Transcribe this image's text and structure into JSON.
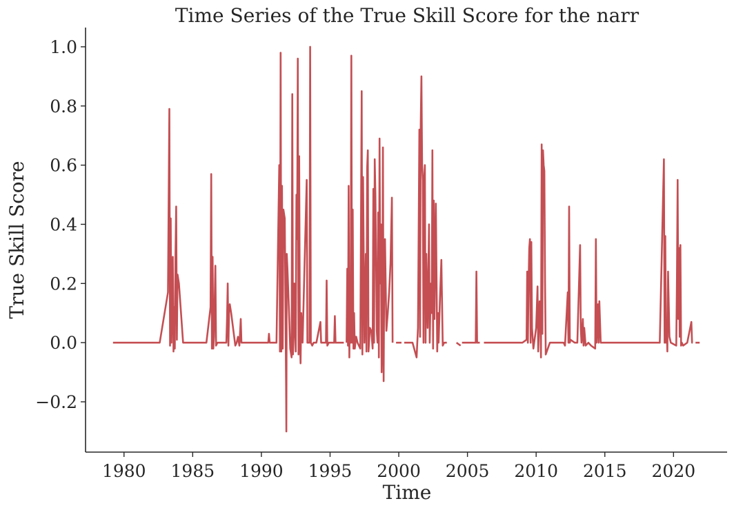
{
  "chart_data": {
    "type": "line",
    "title": "Time Series of the True Skill Score for the narr",
    "xlabel": "Time",
    "ylabel": "True Skill Score",
    "xlim": [
      1977.2,
      2023.9
    ],
    "ylim": [
      -0.37,
      1.065
    ],
    "x_ticks": [
      1980,
      1985,
      1990,
      1995,
      2000,
      2005,
      2010,
      2015,
      2020
    ],
    "x_tick_labels": [
      "1980",
      "1985",
      "1990",
      "1995",
      "2000",
      "2005",
      "2010",
      "2015",
      "2020"
    ],
    "y_ticks": [
      -0.2,
      0.0,
      0.2,
      0.4,
      0.6,
      0.8,
      1.0
    ],
    "y_tick_labels": [
      "−0.2",
      "0.0",
      "0.2",
      "0.4",
      "0.6",
      "0.8",
      "1.0"
    ],
    "grid": false,
    "line_color": "#c44e52",
    "series": [
      {
        "segments": [
          [
            [
              1979.2,
              0
            ],
            [
              1982.6,
              0
            ],
            [
              1983.2,
              0.17
            ],
            [
              1983.3,
              0.79
            ],
            [
              1983.35,
              -0.01
            ],
            [
              1983.4,
              0.42
            ],
            [
              1983.45,
              0
            ],
            [
              1983.55,
              0.29
            ],
            [
              1983.6,
              -0.03
            ],
            [
              1983.65,
              0.12
            ],
            [
              1983.7,
              -0.02
            ],
            [
              1983.75,
              0.3
            ],
            [
              1983.8,
              0.46
            ],
            [
              1983.85,
              0.01
            ],
            [
              1983.9,
              0.23
            ],
            [
              1984.0,
              0.2
            ],
            [
              1984.3,
              0
            ],
            [
              1986.0,
              0
            ],
            [
              1986.3,
              0.12
            ],
            [
              1986.35,
              0.57
            ],
            [
              1986.4,
              -0.02
            ],
            [
              1986.45,
              0.29
            ],
            [
              1986.5,
              -0.02
            ],
            [
              1986.55,
              0.02
            ],
            [
              1986.65,
              0.26
            ],
            [
              1986.7,
              -0.01
            ],
            [
              1986.8,
              0
            ],
            [
              1987.2,
              0
            ],
            [
              1987.3,
              0
            ],
            [
              1987.45,
              0
            ],
            [
              1987.5,
              0.08
            ],
            [
              1987.55,
              0.2
            ],
            [
              1987.6,
              -0.01
            ],
            [
              1987.65,
              0.11
            ],
            [
              1987.7,
              0.13
            ],
            [
              1987.8,
              0.1
            ],
            [
              1988.1,
              -0.01
            ],
            [
              1988.2,
              0
            ],
            [
              1988.3,
              0.02
            ],
            [
              1988.4,
              -0.01
            ],
            [
              1988.5,
              0.08
            ],
            [
              1988.55,
              0
            ],
            [
              1990.5,
              0
            ],
            [
              1990.55,
              0.03
            ],
            [
              1990.6,
              0
            ],
            [
              1991.1,
              0
            ],
            [
              1991.3,
              0.6
            ],
            [
              1991.35,
              -0.03
            ],
            [
              1991.4,
              0.98
            ],
            [
              1991.45,
              -0.03
            ],
            [
              1991.5,
              0.53
            ],
            [
              1991.55,
              -0.02
            ],
            [
              1991.6,
              0.45
            ],
            [
              1991.7,
              0.42
            ],
            [
              1991.8,
              -0.14
            ],
            [
              1991.82,
              -0.3
            ],
            [
              1991.85,
              0.3
            ],
            [
              1991.9,
              0.25
            ],
            [
              1992.0,
              0.12
            ],
            [
              1992.1,
              -0.02
            ],
            [
              1992.2,
              -0.05
            ],
            [
              1992.25,
              0.84
            ],
            [
              1992.3,
              -0.04
            ],
            [
              1992.35,
              0.02
            ],
            [
              1992.4,
              0.2
            ],
            [
              1992.5,
              -0.03
            ],
            [
              1992.55,
              0.5
            ],
            [
              1992.6,
              0.35
            ],
            [
              1992.65,
              0.96
            ],
            [
              1992.7,
              -0.04
            ],
            [
              1992.75,
              0.63
            ],
            [
              1992.8,
              0.03
            ],
            [
              1992.85,
              -0.07
            ],
            [
              1992.9,
              0.1
            ],
            [
              1993.0,
              0
            ],
            [
              1993.3,
              0.55
            ],
            [
              1993.35,
              0
            ],
            [
              1993.5,
              0
            ],
            [
              1993.55,
              1.0
            ],
            [
              1993.6,
              0
            ],
            [
              1993.7,
              -0.01
            ],
            [
              1993.8,
              0
            ],
            [
              1994.0,
              0
            ],
            [
              1994.3,
              0.07
            ],
            [
              1994.35,
              0
            ],
            [
              1994.7,
              0
            ],
            [
              1994.75,
              0.21
            ],
            [
              1994.8,
              -0.01
            ],
            [
              1994.9,
              0
            ],
            [
              1995.3,
              0
            ],
            [
              1995.35,
              0.09
            ],
            [
              1995.4,
              0
            ],
            [
              1996.0,
              0
            ]
          ],
          [
            [
              1996.2,
              0
            ],
            [
              1996.25,
              0.25
            ],
            [
              1996.3,
              -0.01
            ],
            [
              1996.35,
              0.53
            ],
            [
              1996.4,
              -0.05
            ],
            [
              1996.45,
              0.17
            ],
            [
              1996.5,
              0
            ],
            [
              1996.55,
              0.97
            ],
            [
              1996.6,
              0
            ],
            [
              1996.65,
              0.45
            ],
            [
              1996.7,
              -0.02
            ],
            [
              1996.75,
              0.1
            ],
            [
              1996.8,
              -0.02
            ],
            [
              1996.9,
              0.02
            ],
            [
              1997.0,
              0
            ],
            [
              1997.2,
              -0.02
            ],
            [
              1997.3,
              0.85
            ],
            [
              1997.35,
              -0.04
            ],
            [
              1997.4,
              0.56
            ],
            [
              1997.5,
              0
            ],
            [
              1997.6,
              0.3
            ],
            [
              1997.65,
              -0.03
            ],
            [
              1997.7,
              0.59
            ],
            [
              1997.75,
              0.65
            ],
            [
              1997.8,
              -0.03
            ],
            [
              1997.9,
              0.05
            ],
            [
              1998.0,
              0.04
            ],
            [
              1998.1,
              -0.02
            ],
            [
              1998.15,
              0.52
            ],
            [
              1998.2,
              0
            ],
            [
              1998.25,
              0.62
            ],
            [
              1998.3,
              0.5
            ],
            [
              1998.4,
              0.04
            ],
            [
              1998.45,
              0
            ],
            [
              1998.5,
              0.44
            ],
            [
              1998.55,
              -0.05
            ],
            [
              1998.6,
              0.69
            ],
            [
              1998.65,
              0.2
            ],
            [
              1998.7,
              0.4
            ],
            [
              1998.75,
              -0.1
            ],
            [
              1998.8,
              0
            ],
            [
              1998.85,
              0.66
            ],
            [
              1998.9,
              -0.13
            ],
            [
              1998.95,
              0.25
            ],
            [
              1999.0,
              0.35
            ],
            [
              1999.1,
              0.04
            ],
            [
              1999.2,
              0.1
            ],
            [
              1999.3,
              0.17
            ],
            [
              1999.4,
              0.27
            ],
            [
              1999.5,
              0.49
            ],
            [
              1999.55,
              0
            ]
          ],
          [
            [
              1999.8,
              0
            ],
            [
              2000.2,
              0
            ]
          ],
          [
            [
              2000.4,
              0
            ],
            [
              2001.0,
              0
            ],
            [
              2001.3,
              -0.05
            ],
            [
              2001.4,
              0.05
            ],
            [
              2001.45,
              0.38
            ],
            [
              2001.5,
              0.72
            ],
            [
              2001.55,
              0.02
            ],
            [
              2001.6,
              0.74
            ],
            [
              2001.65,
              0.9
            ],
            [
              2001.7,
              0.6
            ],
            [
              2001.75,
              0.55
            ],
            [
              2001.8,
              0
            ],
            [
              2001.85,
              0.55
            ],
            [
              2001.9,
              0.6
            ],
            [
              2001.95,
              0
            ],
            [
              2002.0,
              0.3
            ],
            [
              2002.1,
              0.05
            ],
            [
              2002.2,
              0.4
            ],
            [
              2002.25,
              0
            ],
            [
              2002.3,
              0.12
            ],
            [
              2002.35,
              0.2
            ],
            [
              2002.4,
              0.1
            ],
            [
              2002.45,
              0.65
            ],
            [
              2002.5,
              -0.02
            ],
            [
              2002.55,
              0.48
            ],
            [
              2002.6,
              0.08
            ],
            [
              2002.7,
              0.47
            ],
            [
              2002.8,
              -0.03
            ],
            [
              2002.85,
              0.1
            ],
            [
              2002.9,
              0
            ],
            [
              2003.0,
              0.15
            ],
            [
              2003.1,
              0.28
            ],
            [
              2003.2,
              -0.01
            ],
            [
              2003.3,
              0
            ],
            [
              2003.5,
              0
            ]
          ],
          [
            [
              2004.2,
              0
            ],
            [
              2004.5,
              -0.01
            ]
          ],
          [
            [
              2004.6,
              0
            ],
            [
              2005.3,
              0
            ],
            [
              2005.6,
              0
            ],
            [
              2005.65,
              0.24
            ],
            [
              2005.7,
              0
            ],
            [
              2005.9,
              0
            ]
          ],
          [
            [
              2006.2,
              0
            ],
            [
              2009.0,
              0
            ],
            [
              2009.3,
              0.01
            ],
            [
              2009.35,
              0.24
            ],
            [
              2009.4,
              0
            ],
            [
              2009.45,
              0.2
            ],
            [
              2009.5,
              0.32
            ],
            [
              2009.55,
              0.35
            ],
            [
              2009.6,
              0
            ],
            [
              2009.65,
              0.34
            ],
            [
              2009.7,
              0.05
            ],
            [
              2009.8,
              -0.02
            ],
            [
              2010.0,
              0.05
            ],
            [
              2010.1,
              0.19
            ],
            [
              2010.15,
              -0.03
            ],
            [
              2010.2,
              0.05
            ],
            [
              2010.25,
              0.14
            ],
            [
              2010.3,
              0.1
            ],
            [
              2010.35,
              -0.05
            ],
            [
              2010.4,
              0.67
            ],
            [
              2010.45,
              0.03
            ],
            [
              2010.5,
              0.65
            ],
            [
              2010.55,
              0.6
            ],
            [
              2010.6,
              0.58
            ],
            [
              2010.65,
              0.2
            ],
            [
              2010.7,
              -0.04
            ],
            [
              2011.0,
              0
            ],
            [
              2012.0,
              0
            ],
            [
              2012.1,
              -0.01
            ],
            [
              2012.3,
              0.17
            ],
            [
              2012.35,
              0
            ],
            [
              2012.4,
              0.46
            ],
            [
              2012.45,
              0
            ],
            [
              2012.5,
              0.01
            ],
            [
              2012.8,
              0
            ],
            [
              2013.0,
              0
            ],
            [
              2013.2,
              0.33
            ],
            [
              2013.25,
              0.05
            ],
            [
              2013.3,
              0
            ],
            [
              2013.4,
              0.08
            ],
            [
              2013.45,
              -0.01
            ],
            [
              2013.5,
              0.05
            ],
            [
              2013.6,
              -0.01
            ],
            [
              2013.8,
              0
            ],
            [
              2014.0,
              -0.01
            ],
            [
              2014.3,
              -0.02
            ],
            [
              2014.35,
              0.35
            ],
            [
              2014.4,
              0
            ],
            [
              2014.5,
              0.13
            ],
            [
              2014.55,
              0
            ],
            [
              2014.6,
              0.14
            ],
            [
              2014.7,
              0
            ],
            [
              2015.0,
              0
            ],
            [
              2019.0,
              0
            ],
            [
              2019.3,
              0.62
            ],
            [
              2019.35,
              0
            ],
            [
              2019.4,
              0.36
            ],
            [
              2019.45,
              0
            ],
            [
              2019.5,
              0.05
            ],
            [
              2019.55,
              -0.03
            ],
            [
              2019.6,
              0.24
            ],
            [
              2019.7,
              0.02
            ],
            [
              2019.8,
              0
            ],
            [
              2020.2,
              -0.01
            ],
            [
              2020.25,
              0.22
            ],
            [
              2020.3,
              0.55
            ],
            [
              2020.35,
              0.08
            ],
            [
              2020.4,
              0.32
            ],
            [
              2020.45,
              0.02
            ],
            [
              2020.5,
              0.33
            ],
            [
              2020.55,
              -0.01
            ],
            [
              2020.6,
              0
            ],
            [
              2020.7,
              -0.01
            ],
            [
              2021.0,
              0
            ],
            [
              2021.3,
              0.07
            ],
            [
              2021.35,
              0
            ],
            [
              2021.4,
              0
            ]
          ],
          [
            [
              2021.6,
              0
            ],
            [
              2021.9,
              0
            ]
          ]
        ]
      }
    ]
  }
}
